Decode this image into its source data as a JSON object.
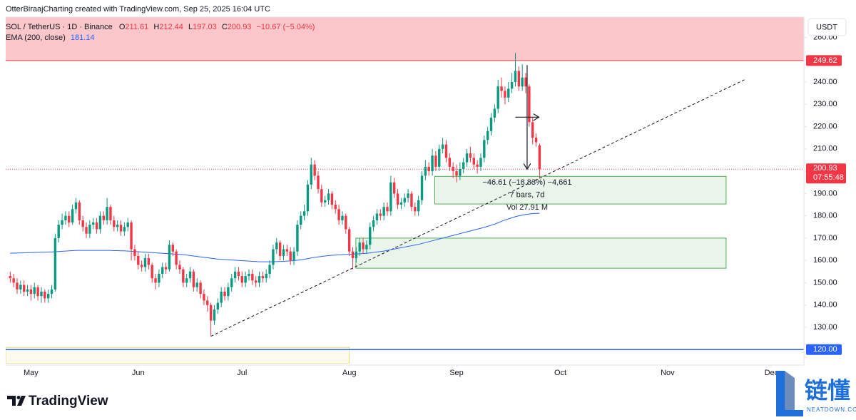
{
  "header": "OtterBiraajCharting created with TradingView.com, Sep 25, 2025 16:04 UTC",
  "chart_data": {
    "type": "candlestick",
    "title": "SOL / TetherUS · 1D · Binance",
    "ohlc_letters": [
      "O",
      "H",
      "L",
      "C"
    ],
    "change": {
      "value": -10.67,
      "label": "−10.67 (−5.04%)"
    },
    "currency": "USDT",
    "up_color": "#089981",
    "down_color": "#f23645",
    "open": [
      153,
      152,
      150,
      147,
      149,
      146,
      147,
      145,
      148,
      144,
      146,
      143,
      145,
      147,
      170,
      176,
      178,
      180,
      177,
      183,
      186,
      178,
      175,
      172,
      176,
      177,
      174,
      180,
      178,
      184,
      178,
      175,
      176,
      173,
      175,
      177,
      165,
      162,
      158,
      157,
      161,
      158,
      152,
      150,
      154,
      157,
      156,
      167,
      164,
      158,
      156,
      150,
      152,
      155,
      148,
      150,
      145,
      142,
      140,
      133,
      138,
      141,
      146,
      144,
      148,
      152,
      155,
      153,
      150,
      153,
      154,
      151,
      150,
      153,
      152,
      154,
      158,
      165,
      168,
      162,
      165,
      164,
      160,
      164,
      176,
      180,
      182,
      194,
      203,
      198,
      192,
      186,
      187,
      190,
      185,
      183,
      178,
      180,
      174,
      164,
      161,
      164,
      168,
      165,
      167,
      175,
      178,
      181,
      180,
      184,
      182,
      195,
      190,
      185,
      186,
      188,
      190,
      184,
      182,
      187,
      198,
      202,
      200,
      207,
      202,
      210,
      212,
      206,
      202,
      200,
      198,
      201,
      204,
      208,
      206,
      203,
      202,
      206,
      214,
      218,
      224,
      228,
      238,
      236,
      233,
      237,
      240,
      245,
      238,
      242,
      238,
      222,
      215,
      211.61
    ],
    "high": [
      155,
      154,
      152,
      151,
      151,
      149,
      149,
      150,
      149,
      148,
      147,
      147,
      149,
      172,
      178,
      181,
      182,
      182,
      185,
      188,
      187,
      180,
      177,
      178,
      179,
      179,
      182,
      182,
      188,
      185,
      180,
      178,
      178,
      177,
      179,
      178,
      167,
      164,
      160,
      163,
      163,
      159,
      154,
      156,
      159,
      159,
      169,
      168,
      165,
      160,
      157,
      154,
      157,
      156,
      152,
      151,
      147,
      144,
      141,
      140,
      143,
      148,
      148,
      150,
      154,
      157,
      157,
      155,
      155,
      156,
      156,
      153,
      155,
      155,
      156,
      160,
      167,
      170,
      169,
      167,
      167,
      166,
      166,
      178,
      182,
      185,
      196,
      206,
      205,
      200,
      194,
      189,
      192,
      191,
      187,
      185,
      182,
      181,
      175,
      166,
      166,
      170,
      170,
      169,
      177,
      180,
      183,
      183,
      186,
      186,
      198,
      197,
      192,
      188,
      190,
      192,
      191,
      186,
      189,
      200,
      205,
      204,
      210,
      209,
      212,
      215,
      214,
      208,
      204,
      203,
      204,
      206,
      210,
      211,
      208,
      205,
      208,
      216,
      220,
      226,
      230,
      241,
      242,
      238,
      240,
      244,
      253,
      247,
      248,
      244,
      239,
      224,
      217,
      212.44
    ],
    "low": [
      150,
      148,
      145,
      145,
      144,
      144,
      142,
      143,
      142,
      141,
      141,
      141,
      143,
      146,
      168,
      174,
      176,
      175,
      176,
      181,
      176,
      173,
      170,
      170,
      174,
      172,
      172,
      176,
      176,
      176,
      173,
      173,
      171,
      171,
      173,
      160,
      160,
      156,
      155,
      155,
      156,
      150,
      147,
      148,
      152,
      154,
      155,
      162,
      156,
      154,
      148,
      148,
      150,
      146,
      146,
      143,
      140,
      137,
      126,
      131,
      136,
      139,
      142,
      142,
      146,
      150,
      151,
      148,
      148,
      151,
      149,
      148,
      148,
      150,
      150,
      152,
      156,
      163,
      160,
      160,
      162,
      158,
      158,
      162,
      174,
      178,
      180,
      192,
      196,
      190,
      184,
      184,
      185,
      183,
      181,
      176,
      176,
      172,
      162,
      156,
      159,
      162,
      163,
      163,
      165,
      173,
      176,
      178,
      178,
      180,
      180,
      188,
      183,
      183,
      184,
      186,
      182,
      180,
      180,
      185,
      196,
      198,
      198,
      200,
      200,
      208,
      204,
      200,
      197,
      195,
      196,
      199,
      202,
      204,
      201,
      199,
      200,
      204,
      212,
      216,
      222,
      226,
      233,
      230,
      231,
      235,
      238,
      236,
      236,
      235,
      220,
      212,
      211,
      197.03
    ],
    "close": [
      152,
      150,
      147,
      149,
      146,
      147,
      145,
      148,
      144,
      146,
      143,
      145,
      147,
      170,
      176,
      178,
      180,
      177,
      183,
      186,
      178,
      175,
      172,
      176,
      177,
      174,
      180,
      178,
      184,
      178,
      175,
      176,
      173,
      175,
      177,
      165,
      162,
      158,
      157,
      161,
      158,
      152,
      150,
      154,
      157,
      156,
      167,
      164,
      158,
      156,
      150,
      152,
      155,
      148,
      150,
      145,
      142,
      140,
      133,
      138,
      141,
      146,
      144,
      148,
      152,
      155,
      153,
      150,
      153,
      154,
      151,
      150,
      153,
      152,
      154,
      158,
      165,
      168,
      162,
      165,
      164,
      160,
      164,
      176,
      180,
      182,
      194,
      203,
      198,
      192,
      186,
      187,
      190,
      185,
      183,
      178,
      180,
      174,
      164,
      161,
      164,
      168,
      165,
      167,
      175,
      178,
      181,
      180,
      184,
      182,
      195,
      190,
      185,
      186,
      188,
      190,
      184,
      182,
      187,
      198,
      202,
      200,
      207,
      202,
      210,
      212,
      206,
      202,
      200,
      198,
      201,
      204,
      208,
      206,
      203,
      202,
      206,
      214,
      218,
      224,
      228,
      238,
      236,
      233,
      237,
      240,
      245,
      238,
      242,
      238,
      222,
      215,
      213,
      200.93
    ],
    "series": [
      {
        "name": "EMA (200, close)",
        "color": "#2962ff",
        "values": [
          163.2,
          163.3,
          163.3,
          163.4,
          163.4,
          163.5,
          163.5,
          163.6,
          163.6,
          163.7,
          163.7,
          163.8,
          163.8,
          163.9,
          164.0,
          164.1,
          164.2,
          164.3,
          164.4,
          164.5,
          164.5,
          164.5,
          164.5,
          164.5,
          164.5,
          164.5,
          164.5,
          164.5,
          164.5,
          164.5,
          164.4,
          164.4,
          164.3,
          164.3,
          164.2,
          164.1,
          164.0,
          163.9,
          163.8,
          163.7,
          163.6,
          163.5,
          163.4,
          163.3,
          163.2,
          163.1,
          163.0,
          162.9,
          162.8,
          162.7,
          162.6,
          162.4,
          162.2,
          162.0,
          161.8,
          161.6,
          161.4,
          161.2,
          161.0,
          160.8,
          160.6,
          160.5,
          160.4,
          160.3,
          160.2,
          160.1,
          160.0,
          159.9,
          159.8,
          159.7,
          159.6,
          159.5,
          159.4,
          159.4,
          159.4,
          159.4,
          159.4,
          159.5,
          159.5,
          159.6,
          159.7,
          159.8,
          159.9,
          160.1,
          160.3,
          160.5,
          160.8,
          161.1,
          161.4,
          161.6,
          161.8,
          162.0,
          162.2,
          162.3,
          162.4,
          162.5,
          162.6,
          162.7,
          162.7,
          162.8,
          162.9,
          163.0,
          163.1,
          163.2,
          163.4,
          163.6,
          163.8,
          164.0,
          164.2,
          164.5,
          164.8,
          165.1,
          165.4,
          165.7,
          166.0,
          166.3,
          166.6,
          166.9,
          167.2,
          167.6,
          168.0,
          168.4,
          168.8,
          169.2,
          169.6,
          170.0,
          170.4,
          170.8,
          171.2,
          171.6,
          172.0,
          172.4,
          172.8,
          173.2,
          173.6,
          174.0,
          174.4,
          174.8,
          175.3,
          175.8,
          176.3,
          176.9,
          177.5,
          178.1,
          178.6,
          179.1,
          179.6,
          180.0,
          180.3,
          180.6,
          180.8,
          181.0,
          181.1,
          181.14
        ]
      }
    ],
    "xlim": [
      -1.3,
      229.4
    ],
    "ylim": [
      113.7,
      269.1
    ],
    "grid": false,
    "xticks": [
      {
        "value": 6,
        "label": "May"
      },
      {
        "value": 37,
        "label": "Jun"
      },
      {
        "value": 67,
        "label": "Jul"
      },
      {
        "value": 98,
        "label": "Aug"
      },
      {
        "value": 129,
        "label": "Sep"
      },
      {
        "value": 159,
        "label": "Oct"
      },
      {
        "value": 190,
        "label": "Nov"
      },
      {
        "value": 220,
        "label": "Dec"
      }
    ],
    "yticks": [
      {
        "value": 130,
        "label": "130.00"
      },
      {
        "value": 140,
        "label": "140.00"
      },
      {
        "value": 150,
        "label": "150.00"
      },
      {
        "value": 160,
        "label": "160.00"
      },
      {
        "value": 170,
        "label": "170.00"
      },
      {
        "value": 180,
        "label": "180.00"
      },
      {
        "value": 190,
        "label": "190.00"
      },
      {
        "value": 200,
        "label": "200.00"
      },
      {
        "value": 210,
        "label": "210.00"
      },
      {
        "value": 220,
        "label": "220.00"
      },
      {
        "value": 230,
        "label": "230.00"
      },
      {
        "value": 240,
        "label": "240.00"
      },
      {
        "value": 250,
        "label": "250.00"
      },
      {
        "value": 260,
        "label": "260.00"
      }
    ],
    "resistance": {
      "value": 249.62,
      "color": "#f23645"
    },
    "support": {
      "value": 120,
      "label": "120.00",
      "color": "#2962ff"
    },
    "countdown": "07:55:48",
    "zones": [
      {
        "x": [
          122.7,
          206.9
        ],
        "y": [
          185.3,
          197.7
        ],
        "color": "#4caf50"
      },
      {
        "x": [
          99.9,
          206.9
        ],
        "y": [
          156.5,
          170
        ],
        "color": "#4caf50"
      },
      {
        "x": [
          -1.3,
          98
        ],
        "y": [
          113.7,
          121
        ],
        "color": "#e6d96b"
      }
    ],
    "trendline": {
      "x": [
        58,
        212.6
      ],
      "y": [
        126,
        241.3
      ]
    },
    "measure": {
      "x": [
        146,
        152.8
      ],
      "y": [
        247.54,
        200.93
      ],
      "labels": [
        "−46.61 (−18.83%) −4,661",
        "7 bars, 7d",
        "Vol 27.91 M"
      ]
    }
  },
  "branding": {
    "logo": "TradingView",
    "watermark": "链懂",
    "watermark_sub": "NEATDOWN.COM"
  }
}
